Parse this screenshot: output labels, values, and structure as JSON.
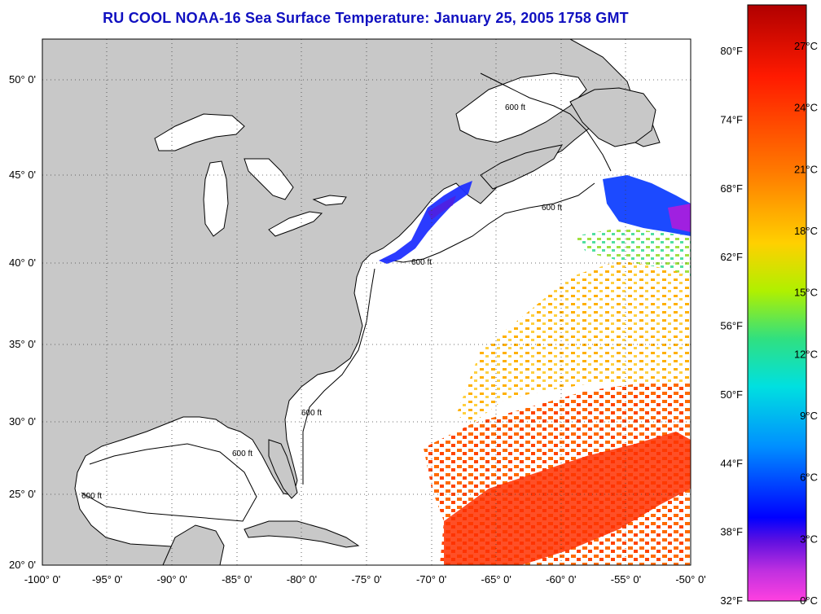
{
  "title": "RU COOL  NOAA-16  Sea Surface Temperature:  January 25, 2005 1758 GMT",
  "map": {
    "lon_range": [
      -100,
      -50
    ],
    "lat_range": [
      20,
      52
    ],
    "lon_ticks": [
      {
        "value": -100,
        "label": "-100° 0'"
      },
      {
        "value": -95,
        "label": "-95° 0'"
      },
      {
        "value": -90,
        "label": "-90° 0'"
      },
      {
        "value": -85,
        "label": "-85° 0'"
      },
      {
        "value": -80,
        "label": "-80° 0'"
      },
      {
        "value": -75,
        "label": "-75° 0'"
      },
      {
        "value": -70,
        "label": "-70° 0'"
      },
      {
        "value": -65,
        "label": "-65° 0'"
      },
      {
        "value": -60,
        "label": "-60° 0'"
      },
      {
        "value": -55,
        "label": "-55° 0'"
      },
      {
        "value": -50,
        "label": "-50° 0'"
      }
    ],
    "lat_ticks": [
      {
        "value": 20,
        "label": "20° 0'"
      },
      {
        "value": 25,
        "label": "25° 0'"
      },
      {
        "value": 30,
        "label": "30° 0'"
      },
      {
        "value": 35,
        "label": "35° 0'"
      },
      {
        "value": 40,
        "label": "40° 0'"
      },
      {
        "value": 45,
        "label": "45° 0'"
      },
      {
        "value": 50,
        "label": "50° 0'"
      }
    ],
    "land_color": "#c8c8c8",
    "water_color": "#ffffff",
    "grid": "dotted",
    "contour_label": "600 ft"
  },
  "colorbar": {
    "celsius_labels": [
      "27°C",
      "24°C",
      "21°C",
      "18°C",
      "15°C",
      "12°C",
      "9°C",
      "6°C",
      "3°C",
      "0°C"
    ],
    "fahrenheit_labels": [
      "80°F",
      "74°F",
      "68°F",
      "62°F",
      "56°F",
      "50°F",
      "44°F",
      "38°F",
      "32°F"
    ],
    "colors": [
      "#b00000",
      "#ff1a00",
      "#ff7a00",
      "#ffd000",
      "#b0f000",
      "#30e080",
      "#00e0e0",
      "#0090ff",
      "#0000ff",
      "#9020d0",
      "#ff40e0"
    ]
  }
}
